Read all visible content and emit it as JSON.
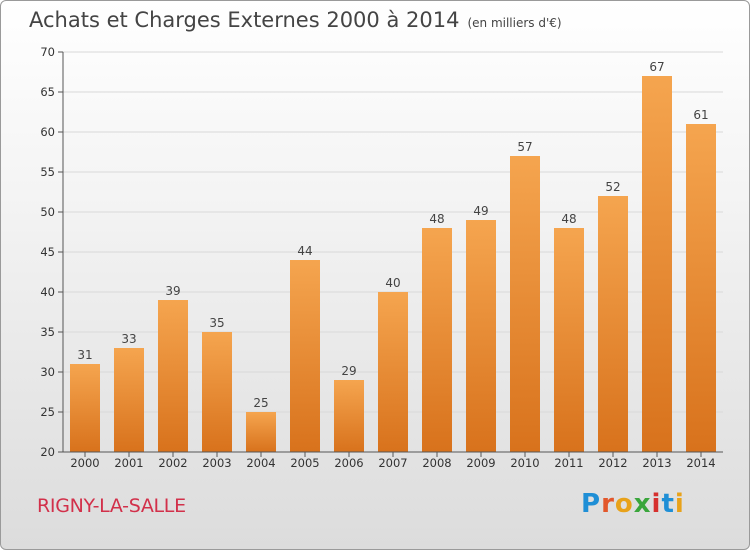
{
  "header": {
    "title": "Achats et Charges Externes 2000 à 2014",
    "unit": "(en milliers d'€)"
  },
  "footer": {
    "commune": "RIGNY-LA-SALLE",
    "logo": "Proxiti"
  },
  "colors": {
    "bar_top": "#f5a54f",
    "bar_bottom": "#d8721c",
    "grid": "#d9d9d9",
    "axis": "#555555",
    "commune_text": "#d2304a"
  },
  "chart_data": {
    "type": "bar",
    "title": "Achats et Charges Externes 2000 à 2014",
    "subtitle": "(en milliers d'€)",
    "categories": [
      "2000",
      "2001",
      "2002",
      "2003",
      "2004",
      "2005",
      "2006",
      "2007",
      "2008",
      "2009",
      "2010",
      "2011",
      "2012",
      "2013",
      "2014"
    ],
    "values": [
      31,
      33,
      39,
      35,
      25,
      44,
      29,
      40,
      48,
      49,
      57,
      48,
      52,
      67,
      61
    ],
    "ylim": [
      20,
      70
    ],
    "yticks": [
      20,
      25,
      30,
      35,
      40,
      45,
      50,
      55,
      60,
      65,
      70
    ],
    "grid": true,
    "data_labels": true
  }
}
